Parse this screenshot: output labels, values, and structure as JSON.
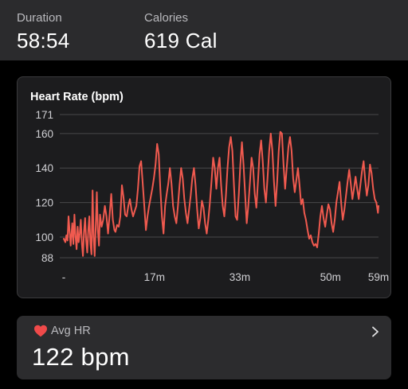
{
  "stats": {
    "duration_label": "Duration",
    "duration_value": "58:54",
    "calories_label": "Calories",
    "calories_value": "619 Cal"
  },
  "avg_hr": {
    "label": "Avg HR",
    "value": "122 bpm",
    "icon": "heart-icon",
    "chevron": "chevron-right-icon"
  },
  "colors": {
    "line": "#f05a4f",
    "heart": "#f04a4a",
    "grid": "#48484a"
  },
  "chart_data": {
    "type": "line",
    "title": "Heart Rate (bpm)",
    "ylabel": "",
    "xlabel": "",
    "y_ticks": [
      171,
      160,
      140,
      120,
      100,
      88
    ],
    "ylim": [
      88,
      171
    ],
    "x_ticks": [
      {
        "label": "-",
        "value": 0
      },
      {
        "label": "17m",
        "value": 17
      },
      {
        "label": "33m",
        "value": 33
      },
      {
        "label": "50m",
        "value": 50
      },
      {
        "label": "59m",
        "value": 59
      }
    ],
    "xlim": [
      0,
      59
    ],
    "grid": true,
    "series": [
      {
        "values": [
          [
            0.0,
            99
          ],
          [
            0.3,
            97
          ],
          [
            0.5,
            101
          ],
          [
            0.7,
            98
          ],
          [
            0.9,
            112
          ],
          [
            1.1,
            103
          ],
          [
            1.3,
            95
          ],
          [
            1.6,
            108
          ],
          [
            1.8,
            96
          ],
          [
            2.0,
            113
          ],
          [
            2.2,
            101
          ],
          [
            2.4,
            93
          ],
          [
            2.6,
            106
          ],
          [
            2.8,
            97
          ],
          [
            3.0,
            102
          ],
          [
            3.2,
            110
          ],
          [
            3.4,
            96
          ],
          [
            3.6,
            89
          ],
          [
            3.8,
            103
          ],
          [
            4.0,
            111
          ],
          [
            4.2,
            98
          ],
          [
            4.4,
            91
          ],
          [
            4.6,
            104
          ],
          [
            4.8,
            112
          ],
          [
            5.0,
            96
          ],
          [
            5.2,
            90
          ],
          [
            5.4,
            127
          ],
          [
            5.6,
            100
          ],
          [
            5.8,
            89
          ],
          [
            6.0,
            107
          ],
          [
            6.2,
            126
          ],
          [
            6.4,
            104
          ],
          [
            6.6,
            95
          ],
          [
            6.8,
            113
          ],
          [
            7.1,
            106
          ],
          [
            7.4,
            110
          ],
          [
            7.7,
            118
          ],
          [
            8.0,
            112
          ],
          [
            8.3,
            102
          ],
          [
            8.6,
            113
          ],
          [
            8.9,
            125
          ],
          [
            9.2,
            110
          ],
          [
            9.5,
            104
          ],
          [
            9.7,
            103
          ],
          [
            10.0,
            107
          ],
          [
            10.3,
            106
          ],
          [
            10.6,
            112
          ],
          [
            10.9,
            130
          ],
          [
            11.2,
            123
          ],
          [
            11.5,
            113
          ],
          [
            11.8,
            112
          ],
          [
            12.1,
            118
          ],
          [
            12.4,
            122
          ],
          [
            12.7,
            116
          ],
          [
            13.0,
            112
          ],
          [
            13.3,
            115
          ],
          [
            13.6,
            118
          ],
          [
            13.9,
            128
          ],
          [
            14.2,
            141
          ],
          [
            14.5,
            144
          ],
          [
            14.8,
            131
          ],
          [
            15.1,
            118
          ],
          [
            15.4,
            104
          ],
          [
            15.7,
            112
          ],
          [
            16.0,
            118
          ],
          [
            16.3,
            123
          ],
          [
            16.6,
            128
          ],
          [
            16.9,
            134
          ],
          [
            17.2,
            142
          ],
          [
            17.5,
            154
          ],
          [
            17.8,
            148
          ],
          [
            18.1,
            128
          ],
          [
            18.4,
            112
          ],
          [
            18.7,
            102
          ],
          [
            19.0,
            118
          ],
          [
            19.3,
            125
          ],
          [
            19.6,
            131
          ],
          [
            19.9,
            140
          ],
          [
            20.2,
            131
          ],
          [
            20.5,
            118
          ],
          [
            20.8,
            112
          ],
          [
            21.1,
            108
          ],
          [
            21.4,
            118
          ],
          [
            21.7,
            130
          ],
          [
            22.0,
            140
          ],
          [
            22.3,
            134
          ],
          [
            22.6,
            122
          ],
          [
            22.9,
            114
          ],
          [
            23.2,
            108
          ],
          [
            23.5,
            116
          ],
          [
            23.8,
            124
          ],
          [
            24.1,
            134
          ],
          [
            24.4,
            140
          ],
          [
            24.7,
            130
          ],
          [
            25.0,
            116
          ],
          [
            25.3,
            105
          ],
          [
            25.6,
            111
          ],
          [
            25.9,
            121
          ],
          [
            26.2,
            117
          ],
          [
            26.5,
            108
          ],
          [
            26.8,
            102
          ],
          [
            27.1,
            110
          ],
          [
            27.4,
            120
          ],
          [
            27.7,
            132
          ],
          [
            28.0,
            146
          ],
          [
            28.3,
            140
          ],
          [
            28.6,
            128
          ],
          [
            28.9,
            140
          ],
          [
            29.2,
            146
          ],
          [
            29.5,
            130
          ],
          [
            29.8,
            118
          ],
          [
            30.1,
            112
          ],
          [
            30.4,
            124
          ],
          [
            30.7,
            140
          ],
          [
            31.0,
            152
          ],
          [
            31.3,
            158
          ],
          [
            31.6,
            150
          ],
          [
            31.9,
            130
          ],
          [
            32.2,
            112
          ],
          [
            32.5,
            110
          ],
          [
            32.8,
            124
          ],
          [
            33.1,
            142
          ],
          [
            33.4,
            155
          ],
          [
            33.7,
            142
          ],
          [
            34.0,
            125
          ],
          [
            34.3,
            108
          ],
          [
            34.6,
            118
          ],
          [
            34.9,
            132
          ],
          [
            35.2,
            146
          ],
          [
            35.5,
            140
          ],
          [
            35.8,
            125
          ],
          [
            36.1,
            117
          ],
          [
            36.4,
            132
          ],
          [
            36.7,
            148
          ],
          [
            37.0,
            156
          ],
          [
            37.3,
            144
          ],
          [
            37.6,
            128
          ],
          [
            37.9,
            120
          ],
          [
            38.2,
            134
          ],
          [
            38.5,
            150
          ],
          [
            38.8,
            160
          ],
          [
            39.1,
            150
          ],
          [
            39.4,
            132
          ],
          [
            39.7,
            118
          ],
          [
            40.0,
            132
          ],
          [
            40.3,
            150
          ],
          [
            40.6,
            161
          ],
          [
            40.9,
            160
          ],
          [
            41.2,
            142
          ],
          [
            41.5,
            128
          ],
          [
            41.8,
            140
          ],
          [
            42.1,
            152
          ],
          [
            42.4,
            158
          ],
          [
            42.7,
            150
          ],
          [
            43.0,
            134
          ],
          [
            43.3,
            126
          ],
          [
            43.6,
            133
          ],
          [
            43.9,
            140
          ],
          [
            44.2,
            130
          ],
          [
            44.5,
            119
          ],
          [
            44.8,
            122
          ],
          [
            45.1,
            114
          ],
          [
            45.4,
            110
          ],
          [
            45.7,
            104
          ],
          [
            46.0,
            99
          ],
          [
            46.3,
            101
          ],
          [
            46.6,
            97
          ],
          [
            46.9,
            95
          ],
          [
            47.2,
            96
          ],
          [
            47.5,
            94
          ],
          [
            47.8,
            102
          ],
          [
            48.1,
            112
          ],
          [
            48.4,
            118
          ],
          [
            48.7,
            111
          ],
          [
            49.0,
            106
          ],
          [
            49.3,
            113
          ],
          [
            49.6,
            119
          ],
          [
            49.9,
            116
          ],
          [
            50.2,
            108
          ],
          [
            50.5,
            103
          ],
          [
            50.8,
            110
          ],
          [
            51.1,
            120
          ],
          [
            51.4,
            126
          ],
          [
            51.7,
            132
          ],
          [
            52.0,
            120
          ],
          [
            52.3,
            110
          ],
          [
            52.6,
            116
          ],
          [
            52.9,
            124
          ],
          [
            53.2,
            132
          ],
          [
            53.5,
            139
          ],
          [
            53.8,
            131
          ],
          [
            54.1,
            122
          ],
          [
            54.4,
            128
          ],
          [
            54.7,
            135
          ],
          [
            55.0,
            128
          ],
          [
            55.3,
            122
          ],
          [
            55.6,
            130
          ],
          [
            55.9,
            138
          ],
          [
            56.2,
            144
          ],
          [
            56.5,
            133
          ],
          [
            56.8,
            124
          ],
          [
            57.1,
            130
          ],
          [
            57.4,
            142
          ],
          [
            57.7,
            137
          ],
          [
            58.0,
            128
          ],
          [
            58.3,
            122
          ],
          [
            58.6,
            120
          ],
          [
            58.9,
            114
          ],
          [
            59.0,
            118
          ]
        ]
      }
    ]
  }
}
